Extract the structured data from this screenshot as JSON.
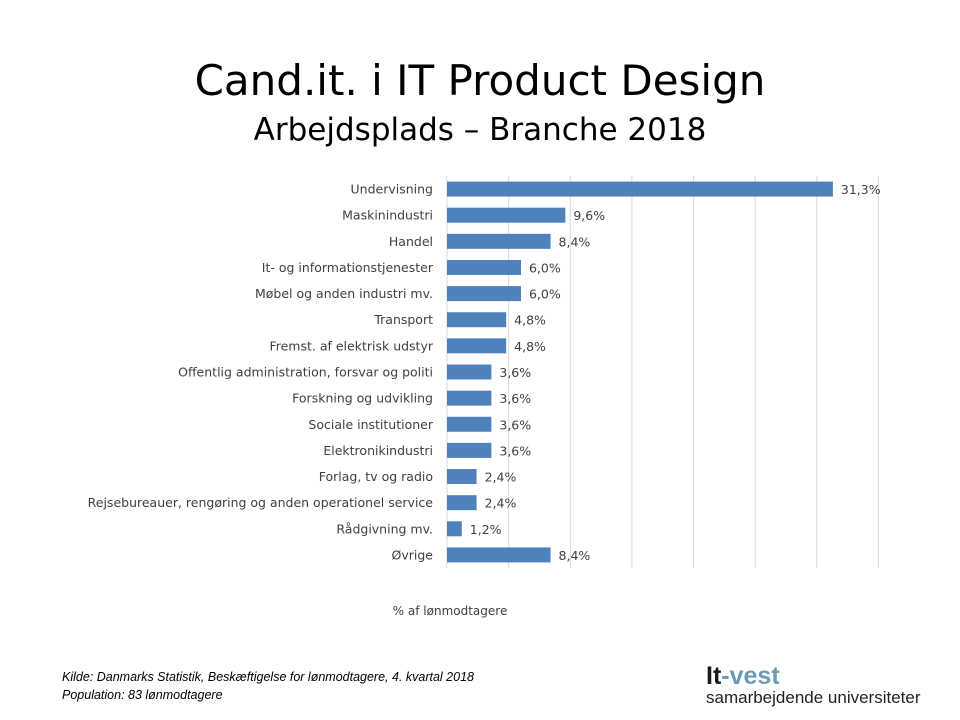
{
  "title": "Cand.it. i IT Product Design",
  "subtitle": "Arbejdsplads – Branche 2018",
  "chart_data": {
    "type": "bar",
    "orientation": "horizontal",
    "categories": [
      "Undervisning",
      "Maskinindustri",
      "Handel",
      "It- og informationstjenester",
      "Møbel og anden industri mv.",
      "Transport",
      "Fremst. af elektrisk udstyr",
      "Offentlig administration, forsvar og politi",
      "Forskning og udvikling",
      "Sociale institutioner",
      "Elektronikindustri",
      "Forlag, tv og radio",
      "Rejsebureauer, rengøring og anden operationel service",
      "Rådgivning mv.",
      "Øvrige"
    ],
    "values": [
      31.3,
      9.6,
      8.4,
      6.0,
      6.0,
      4.8,
      4.8,
      3.6,
      3.6,
      3.6,
      3.6,
      2.4,
      2.4,
      1.2,
      8.4
    ],
    "labels": [
      "31,3%",
      "9,6%",
      "8,4%",
      "6,0%",
      "6,0%",
      "4,8%",
      "4,8%",
      "3,6%",
      "3,6%",
      "3,6%",
      "3,6%",
      "2,4%",
      "2,4%",
      "1,2%",
      "8,4%"
    ],
    "xlabel": "% af lønmodtagere",
    "xlim": [
      0,
      35
    ],
    "grid_step": 5,
    "grid": true,
    "bar_color": "#4f81bd"
  },
  "footer": {
    "source": "Kilde: Danmarks Statistik, Beskæftigelse for lønmodtagere, 4. kvartal 2018",
    "population": "Population: 83 lønmodtagere"
  },
  "logo": {
    "part1": "It",
    "part2": "-vest",
    "tagline": "samarbejdende universiteter"
  }
}
